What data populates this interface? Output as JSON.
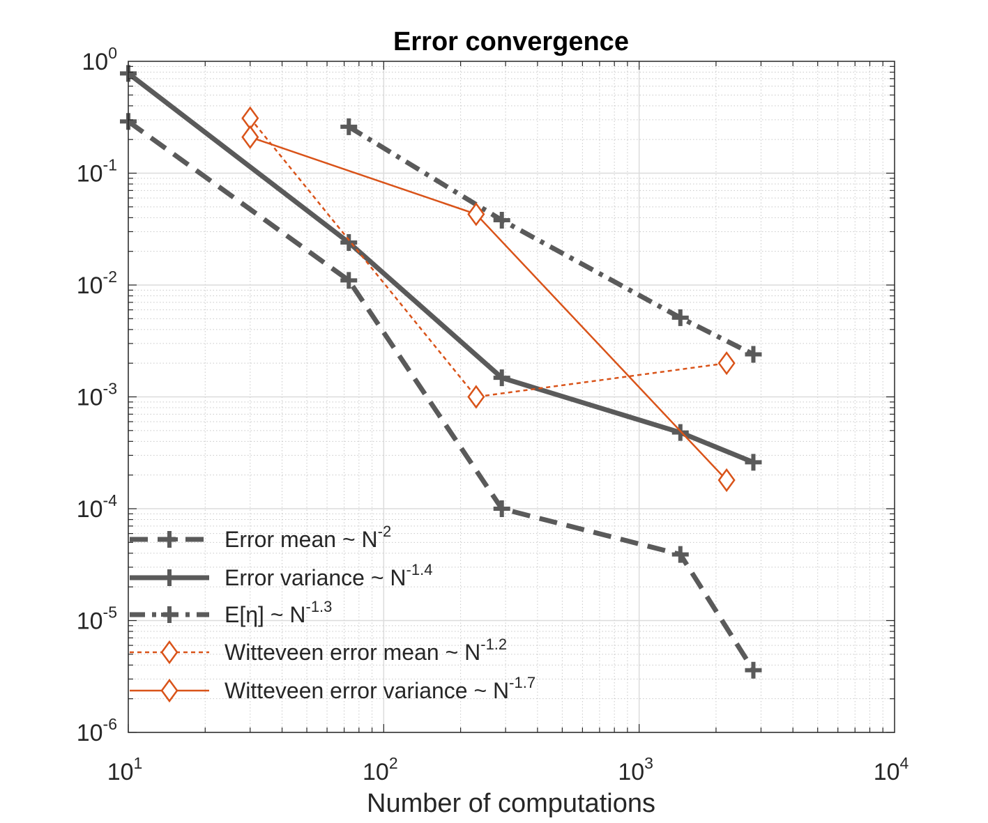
{
  "chart_data": {
    "type": "line",
    "title": "Error convergence",
    "xlabel": "Number of computations",
    "ylabel": "",
    "xscale": "log",
    "yscale": "log",
    "xlim": [
      10,
      10000
    ],
    "ylim": [
      1e-06,
      1
    ],
    "grid": true,
    "minor_grid": true,
    "legend_position": "bottom-left",
    "x_ticks": [
      {
        "base": "10",
        "exp": "1"
      },
      {
        "base": "10",
        "exp": "2"
      },
      {
        "base": "10",
        "exp": "3"
      },
      {
        "base": "10",
        "exp": "4"
      }
    ],
    "y_ticks": [
      {
        "base": "10",
        "exp": "0"
      },
      {
        "base": "10",
        "exp": "-1"
      },
      {
        "base": "10",
        "exp": "-2"
      },
      {
        "base": "10",
        "exp": "-3"
      },
      {
        "base": "10",
        "exp": "-4"
      },
      {
        "base": "10",
        "exp": "-5"
      },
      {
        "base": "10",
        "exp": "-6"
      }
    ],
    "series": [
      {
        "name": "Error mean ~ N",
        "name_exp": "-2",
        "color": "#5a5a5a",
        "line": "dashed",
        "width": 7,
        "marker": "plus",
        "x": [
          10,
          73,
          290,
          1450,
          2800
        ],
        "y": [
          0.29,
          0.011,
          0.0001,
          3.9e-05,
          3.6e-06
        ]
      },
      {
        "name": "Error variance ~ N",
        "name_exp": "-1.4",
        "color": "#5a5a5a",
        "line": "solid",
        "width": 7,
        "marker": "plus",
        "x": [
          10,
          73,
          290,
          1450,
          2800
        ],
        "y": [
          0.78,
          0.024,
          0.00148,
          0.00048,
          0.00026
        ]
      },
      {
        "name": "E[η] ~ N",
        "name_exp": "-1.3",
        "color": "#5a5a5a",
        "line": "dashdot",
        "width": 7,
        "marker": "plus",
        "x": [
          73,
          290,
          1450,
          2800
        ],
        "y": [
          0.26,
          0.038,
          0.0051,
          0.0024
        ]
      },
      {
        "name": "Witteveen error mean ~ N",
        "name_exp": "-1.2",
        "color": "#d95319",
        "line": "dotted",
        "width": 2.5,
        "marker": "diamond",
        "x": [
          30,
          230,
          2200
        ],
        "y": [
          0.31,
          0.001,
          0.002
        ]
      },
      {
        "name": "Witteveen error variance ~ N",
        "name_exp": "-1.7",
        "color": "#d95319",
        "line": "solid",
        "width": 2.5,
        "marker": "diamond",
        "x": [
          30,
          230,
          2200
        ],
        "y": [
          0.21,
          0.043,
          0.00018
        ]
      }
    ]
  }
}
